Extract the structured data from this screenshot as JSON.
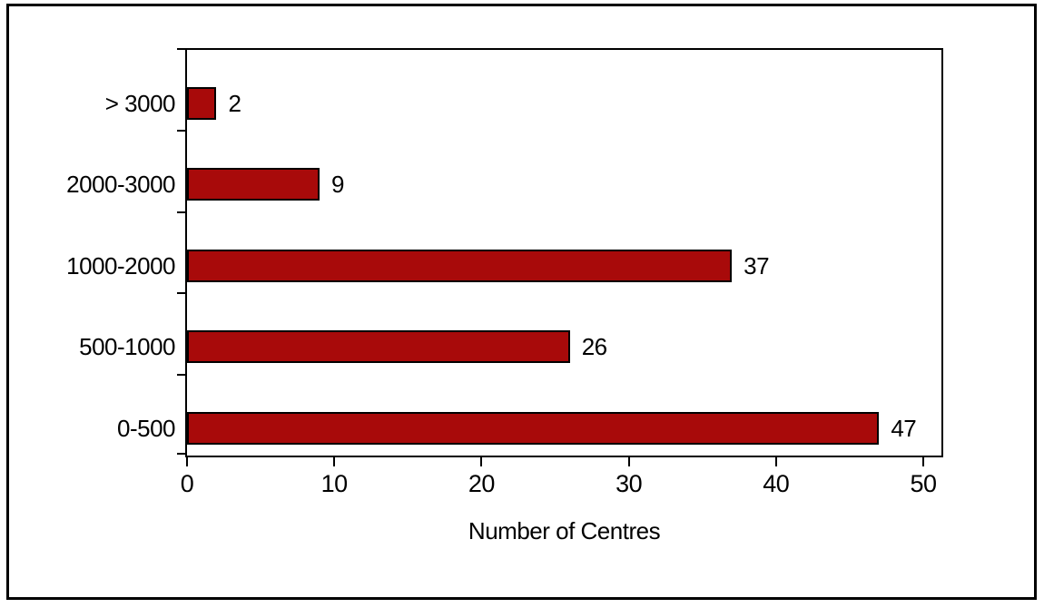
{
  "chart_data": {
    "type": "bar",
    "orientation": "horizontal",
    "title": "",
    "xlabel": "Number of Centres",
    "ylabel": "",
    "categories": [
      "> 3000",
      "2000-3000",
      "1000-2000",
      "500-1000",
      "0-500"
    ],
    "values": [
      2,
      9,
      37,
      26,
      47
    ],
    "value_labels": [
      "2",
      "9",
      "37",
      "26",
      "47"
    ],
    "xticks": [
      0,
      10,
      20,
      30,
      40,
      50
    ],
    "xlim": [
      0,
      50
    ],
    "grid": false,
    "legend": false,
    "bar_color": "#A80A0A",
    "bar_border_color": "#000000",
    "axis_color": "#000000",
    "text_color": "#000000",
    "background_color": "#FFFFFF"
  }
}
